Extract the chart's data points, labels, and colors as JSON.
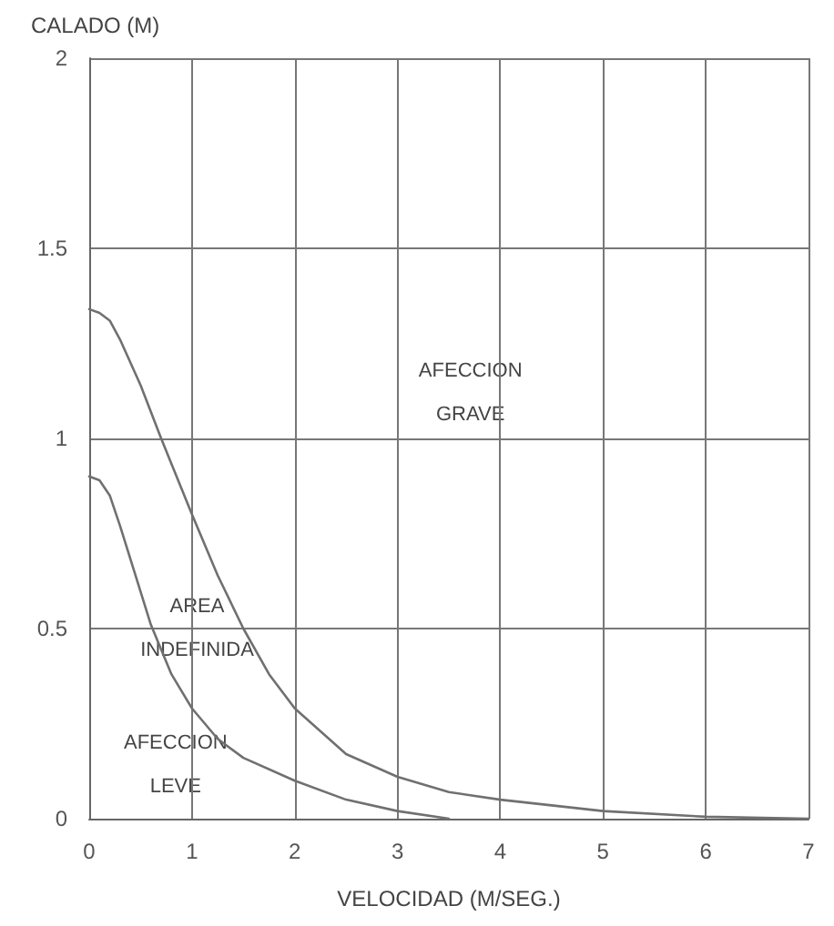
{
  "chart_data": {
    "type": "line",
    "xlabel": "VELOCIDAD (M/SEG.)",
    "ylabel": "CALADO (M)",
    "xlim": [
      0,
      7
    ],
    "xticks": [
      0,
      1,
      2,
      3,
      4,
      5,
      6,
      7
    ],
    "ylim": [
      0,
      2
    ],
    "yticks": [
      0,
      0.5,
      1,
      1.5,
      2
    ],
    "grid": true,
    "marker": "none",
    "line_style": "solid",
    "series": [
      {
        "color": "#707070",
        "x": [
          0,
          0.1,
          0.2,
          0.3,
          0.5,
          0.7,
          1,
          1.25,
          1.5,
          1.75,
          2,
          2.5,
          3,
          3.5,
          4,
          5,
          6,
          7
        ],
        "values": [
          1.34,
          1.33,
          1.31,
          1.26,
          1.14,
          1.0,
          0.8,
          0.64,
          0.5,
          0.38,
          0.29,
          0.17,
          0.11,
          0.07,
          0.05,
          0.02,
          0.005,
          0
        ]
      },
      {
        "color": "#707070",
        "x": [
          0,
          0.1,
          0.2,
          0.3,
          0.45,
          0.6,
          0.8,
          1,
          1.25,
          1.5,
          2,
          2.5,
          3,
          3.5
        ],
        "values": [
          0.9,
          0.89,
          0.85,
          0.77,
          0.64,
          0.51,
          0.38,
          0.29,
          0.21,
          0.16,
          0.1,
          0.05,
          0.02,
          0
        ]
      }
    ],
    "annotations": [
      "AFECCION\nGRAVE",
      "AREA\nINDEFINIDA",
      "AFECCION\nLEVE"
    ]
  }
}
